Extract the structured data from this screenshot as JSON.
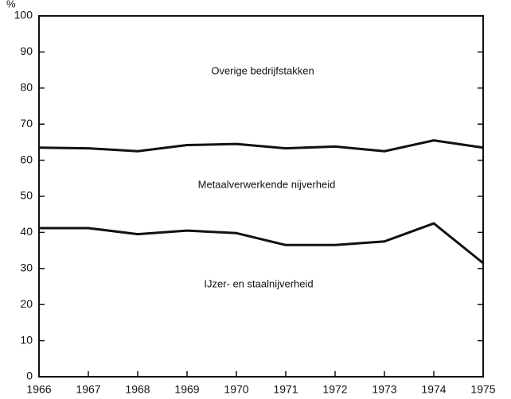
{
  "chart_data": {
    "type": "line",
    "y_label": "%",
    "x": [
      1966,
      1967,
      1968,
      1969,
      1970,
      1971,
      1972,
      1973,
      1974,
      1975
    ],
    "series": [
      {
        "color": "#111111",
        "values": [
          63.5,
          63.3,
          62.5,
          64.2,
          64.5,
          63.3,
          63.8,
          62.5,
          65.5,
          63.5
        ]
      },
      {
        "color": "#111111",
        "values": [
          41.2,
          41.2,
          39.5,
          40.5,
          39.8,
          36.5,
          36.5,
          37.5,
          42.5,
          31.5
        ]
      }
    ],
    "annotations": [
      "Overige bedrijfstakken",
      "Metaalverwerkende nijverheid",
      "IJzer- en staalnijverheid"
    ],
    "xlim": [
      1966,
      1975
    ],
    "xticks": [
      1966,
      1967,
      1968,
      1969,
      1970,
      1971,
      1972,
      1973,
      1974,
      1975
    ],
    "ylim": [
      0,
      100
    ],
    "yticks": [
      0,
      10,
      20,
      30,
      40,
      50,
      60,
      70,
      80,
      90,
      100
    ],
    "grid": false
  }
}
